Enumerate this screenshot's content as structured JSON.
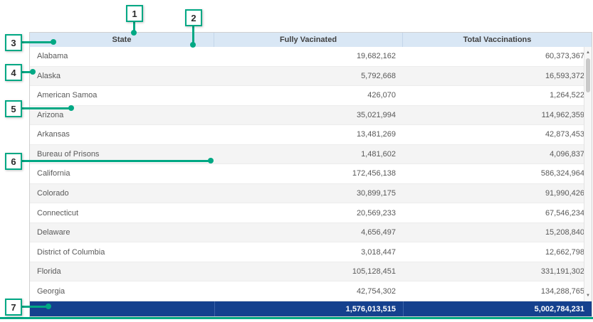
{
  "table": {
    "columns": [
      "State",
      "Fully Vacinated",
      "Total Vaccinations"
    ],
    "rows": [
      [
        "Alabama",
        "19,682,162",
        "60,373,367"
      ],
      [
        "Alaska",
        "5,792,668",
        "16,593,372"
      ],
      [
        "American Samoa",
        "426,070",
        "1,264,522"
      ],
      [
        "Arizona",
        "35,021,994",
        "114,962,359"
      ],
      [
        "Arkansas",
        "13,481,269",
        "42,873,453"
      ],
      [
        "Bureau of Prisons",
        "1,481,602",
        "4,096,837"
      ],
      [
        "California",
        "172,456,138",
        "586,324,964"
      ],
      [
        "Colorado",
        "30,899,175",
        "91,990,426"
      ],
      [
        "Connecticut",
        "20,569,233",
        "67,546,234"
      ],
      [
        "Delaware",
        "4,656,497",
        "15,208,840"
      ],
      [
        "District of Columbia",
        "3,018,447",
        "12,662,798"
      ],
      [
        "Florida",
        "105,128,451",
        "331,191,302"
      ],
      [
        "Georgia",
        "42,754,302",
        "134,288,765"
      ]
    ],
    "totals": [
      "",
      "1,576,013,515",
      "5,002,784,231"
    ]
  },
  "annotations": [
    {
      "label": "1"
    },
    {
      "label": "2"
    },
    {
      "label": "3"
    },
    {
      "label": "4"
    },
    {
      "label": "5"
    },
    {
      "label": "6"
    },
    {
      "label": "7"
    }
  ],
  "icons": {
    "scroll_up": "▲",
    "scroll_down": "▼"
  },
  "colors": {
    "header_bg": "#d9e7f5",
    "totals_bg": "#15418e",
    "annotation_accent": "#00a884",
    "row_alt": "#f4f4f4"
  }
}
